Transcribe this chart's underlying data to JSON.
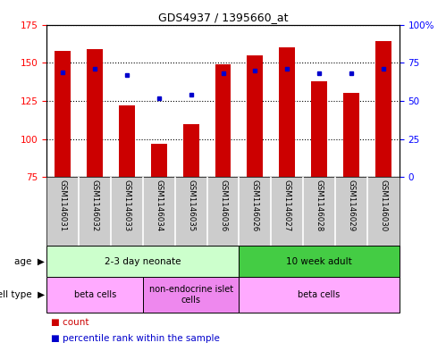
{
  "title": "GDS4937 / 1395660_at",
  "samples": [
    "GSM1146031",
    "GSM1146032",
    "GSM1146033",
    "GSM1146034",
    "GSM1146035",
    "GSM1146036",
    "GSM1146026",
    "GSM1146027",
    "GSM1146028",
    "GSM1146029",
    "GSM1146030"
  ],
  "counts": [
    158,
    159,
    122,
    97,
    110,
    149,
    155,
    160,
    138,
    130,
    164
  ],
  "percentiles": [
    69,
    71,
    67,
    52,
    54,
    68,
    70,
    71,
    68,
    68,
    71
  ],
  "ylim_left": [
    75,
    175
  ],
  "ylim_right": [
    0,
    100
  ],
  "yticks_left": [
    75,
    100,
    125,
    150,
    175
  ],
  "yticks_right": [
    0,
    25,
    50,
    75,
    100
  ],
  "ytick_labels_right": [
    "0",
    "25",
    "50",
    "75",
    "100%"
  ],
  "bar_color": "#cc0000",
  "dot_color": "#0000cc",
  "bar_bottom": 75,
  "age_groups": [
    {
      "label": "2-3 day neonate",
      "start": 0,
      "end": 6,
      "color": "#ccffcc"
    },
    {
      "label": "10 week adult",
      "start": 6,
      "end": 11,
      "color": "#44cc44"
    }
  ],
  "cell_type_groups": [
    {
      "label": "beta cells",
      "start": 0,
      "end": 3,
      "color": "#ffaaff"
    },
    {
      "label": "non-endocrine islet\ncells",
      "start": 3,
      "end": 6,
      "color": "#ee88ee"
    },
    {
      "label": "beta cells",
      "start": 6,
      "end": 11,
      "color": "#ffaaff"
    }
  ],
  "sample_bg": "#cccccc",
  "bg_color": "#ffffff"
}
